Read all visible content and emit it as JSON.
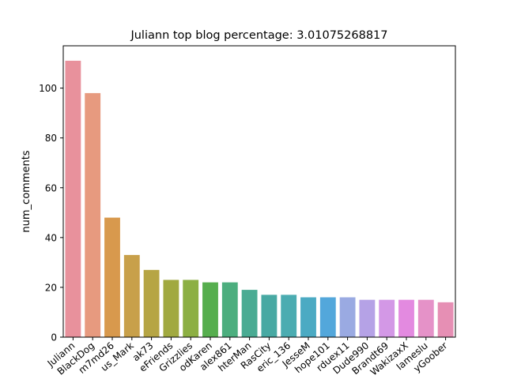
{
  "chart_data": {
    "type": "bar",
    "title": "Juliann   top blog percentage:    3.01075268817",
    "xlabel": "",
    "ylabel": "num_comments",
    "ylim": [
      0,
      117
    ],
    "yticks": [
      0,
      20,
      40,
      60,
      80,
      100
    ],
    "grid": false,
    "categories": [
      "Juliann",
      "BlackDog",
      "m7md26",
      "us_Mark",
      "ak73",
      "eFriends",
      "Grizzlies",
      "odKaren",
      "alex861",
      "hterMan",
      "RasCity",
      "eric_136",
      "JesseM",
      "hope101",
      "rduex11",
      "Dude990",
      "Brandt69",
      "WakizaxX",
      "Iameslu",
      "yGoober"
    ],
    "values": [
      111,
      98,
      48,
      33,
      27,
      23,
      23,
      22,
      22,
      19,
      17,
      17,
      16,
      16,
      16,
      15,
      15,
      15,
      15,
      14
    ],
    "colors": [
      "#e8919c",
      "#e79a7f",
      "#d8994d",
      "#c8a04a",
      "#b6a544",
      "#a1a940",
      "#8caf43",
      "#56ae4e",
      "#4cae7e",
      "#4aab93",
      "#48a9a3",
      "#4bacb1",
      "#4baac3",
      "#53a7db",
      "#9aaae2",
      "#b5a2e6",
      "#d398e6",
      "#e38ae0",
      "#e592c8",
      "#e68fb4"
    ]
  }
}
